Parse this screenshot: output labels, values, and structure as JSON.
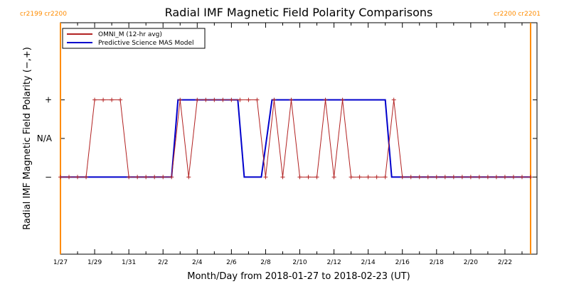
{
  "chart_data": {
    "type": "line",
    "title": "Radial IMF Magnetic Field Polarity Comparisons",
    "xlabel": "Month/Day from 2018-01-27 to 2018-02-23 (UT)",
    "ylabel": "Radial IMF Magnetic Field Polarity (−,+)",
    "x_unit": "days",
    "xlim": [
      "2018-01-27",
      "2018-02-23 21:00"
    ],
    "ylim": [
      -1,
      2
    ],
    "y_ticks": [
      {
        "value": 0,
        "label": "−"
      },
      {
        "value": 0.5,
        "label": "N/A"
      },
      {
        "value": 1,
        "label": "+"
      }
    ],
    "x_ticks": [
      {
        "value": "2018-01-27",
        "label": "1/27"
      },
      {
        "value": "2018-01-29",
        "label": "1/29"
      },
      {
        "value": "2018-01-31",
        "label": "1/31"
      },
      {
        "value": "2018-02-02",
        "label": "2/2"
      },
      {
        "value": "2018-02-04",
        "label": "2/4"
      },
      {
        "value": "2018-02-06",
        "label": "2/6"
      },
      {
        "value": "2018-02-08",
        "label": "2/8"
      },
      {
        "value": "2018-02-10",
        "label": "2/10"
      },
      {
        "value": "2018-02-12",
        "label": "2/12"
      },
      {
        "value": "2018-02-14",
        "label": "2/14"
      },
      {
        "value": "2018-02-16",
        "label": "2/16"
      },
      {
        "value": "2018-02-18",
        "label": "2/18"
      },
      {
        "value": "2018-02-20",
        "label": "2/20"
      },
      {
        "value": "2018-02-22",
        "label": "2/22"
      }
    ],
    "carrington_markers": [
      {
        "x": "2018-01-27",
        "labels": [
          "cr2199",
          "cr2200"
        ],
        "side": "left"
      },
      {
        "x": "2018-02-23 12:00",
        "labels": [
          "cr2200",
          "cr2201"
        ],
        "side": "right"
      }
    ],
    "legend_position": "top-left",
    "series": [
      {
        "name": "OMNI_M (12-hr avg)",
        "color": "#b22222",
        "marker": "+",
        "x": [
          "2018-01-27 00:00",
          "2018-01-27 12:00",
          "2018-01-28 00:00",
          "2018-01-28 12:00",
          "2018-01-29 00:00",
          "2018-01-29 12:00",
          "2018-01-30 00:00",
          "2018-01-30 12:00",
          "2018-01-31 00:00",
          "2018-01-31 12:00",
          "2018-02-01 00:00",
          "2018-02-01 12:00",
          "2018-02-02 00:00",
          "2018-02-02 12:00",
          "2018-02-03 00:00",
          "2018-02-03 12:00",
          "2018-02-04 00:00",
          "2018-02-04 12:00",
          "2018-02-05 00:00",
          "2018-02-05 12:00",
          "2018-02-06 00:00",
          "2018-02-06 12:00",
          "2018-02-07 00:00",
          "2018-02-07 12:00",
          "2018-02-08 00:00",
          "2018-02-08 12:00",
          "2018-02-09 00:00",
          "2018-02-09 12:00",
          "2018-02-10 00:00",
          "2018-02-10 12:00",
          "2018-02-11 00:00",
          "2018-02-11 12:00",
          "2018-02-12 00:00",
          "2018-02-12 12:00",
          "2018-02-13 00:00",
          "2018-02-13 12:00",
          "2018-02-14 00:00",
          "2018-02-14 12:00",
          "2018-02-15 00:00",
          "2018-02-15 12:00",
          "2018-02-16 00:00",
          "2018-02-16 12:00",
          "2018-02-17 00:00",
          "2018-02-17 12:00",
          "2018-02-18 00:00",
          "2018-02-18 12:00",
          "2018-02-19 00:00",
          "2018-02-19 12:00",
          "2018-02-20 00:00",
          "2018-02-20 12:00",
          "2018-02-21 00:00",
          "2018-02-21 12:00",
          "2018-02-22 00:00",
          "2018-02-22 12:00",
          "2018-02-23 00:00",
          "2018-02-23 12:00"
        ],
        "values": [
          0,
          0,
          0,
          0,
          1,
          1,
          1,
          1,
          0,
          0,
          0,
          0,
          0,
          0,
          1,
          0,
          1,
          1,
          1,
          1,
          1,
          1,
          1,
          1,
          0,
          1,
          0,
          1,
          0,
          0,
          0,
          1,
          0,
          1,
          0,
          0,
          0,
          0,
          0,
          1,
          0,
          0,
          0,
          0,
          0,
          0,
          0,
          0,
          0,
          0,
          0,
          0,
          0,
          0,
          0,
          0
        ]
      },
      {
        "name": "Predictive Science MAS Model",
        "color": "#0000cc",
        "x": [
          "2018-01-27 00:00",
          "2018-02-02 12:00",
          "2018-02-02 21:00",
          "2018-02-06 09:00",
          "2018-02-06 18:00",
          "2018-02-07 18:00",
          "2018-02-08 09:00",
          "2018-02-15 00:00",
          "2018-02-15 09:00",
          "2018-02-23 12:00"
        ],
        "values": [
          0,
          0,
          1,
          1,
          0,
          0,
          1,
          1,
          0,
          0
        ]
      }
    ]
  }
}
